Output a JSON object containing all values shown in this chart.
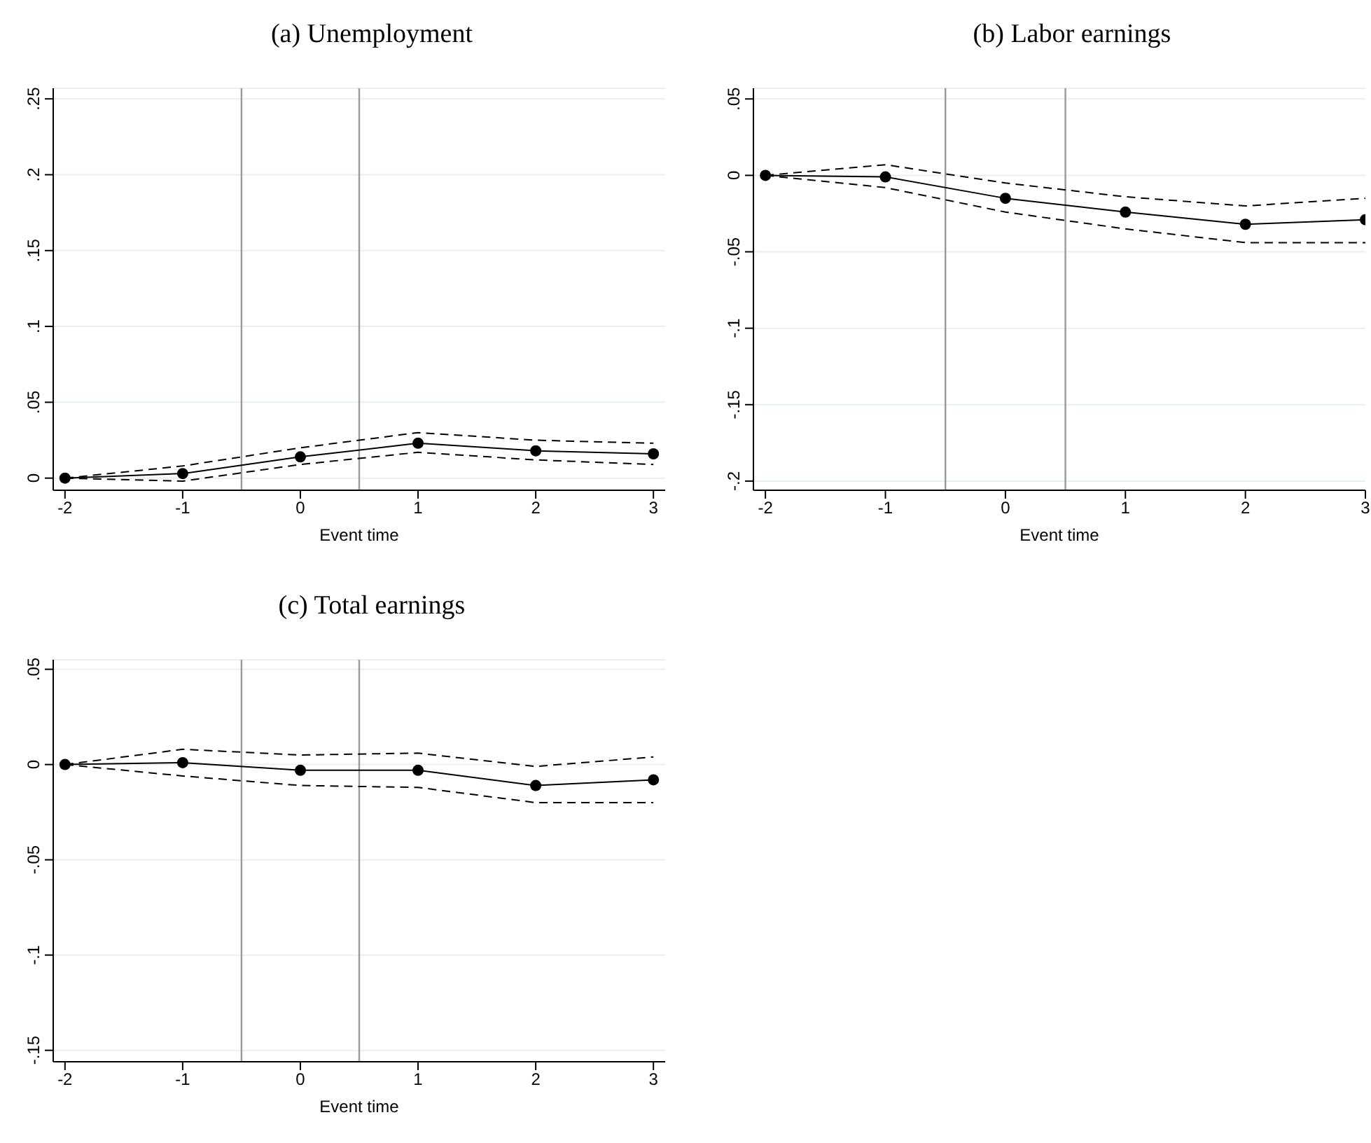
{
  "chart_data": [
    {
      "type": "line",
      "title": "(a) Unemployment",
      "xlabel": "Event time",
      "x": [
        -2,
        -1,
        0,
        1,
        2,
        3
      ],
      "series": [
        {
          "color": "#000000",
          "values": [
            0,
            0.003,
            0.014,
            0.023,
            0.018,
            0.016
          ],
          "marker": "circle",
          "line_style": "solid"
        },
        {
          "color": "#000000",
          "values": [
            0,
            -0.002,
            0.009,
            0.017,
            0.012,
            0.009
          ],
          "marker": "none",
          "line_style": "dashed"
        },
        {
          "color": "#000000",
          "values": [
            0,
            0.008,
            0.02,
            0.03,
            0.025,
            0.023
          ],
          "marker": "none",
          "line_style": "dashed"
        }
      ],
      "xlim": [
        -2.1,
        3.1
      ],
      "xticks": [
        -2,
        -1,
        0,
        1,
        2,
        3
      ],
      "ylim": [
        -0.008,
        0.257
      ],
      "yticks": [
        {
          "value": 0,
          "label": "0"
        },
        {
          "value": 0.05,
          "label": ".05"
        },
        {
          "value": 0.1,
          "label": ".1"
        },
        {
          "value": 0.15,
          "label": ".15"
        },
        {
          "value": 0.2,
          "label": ".2"
        },
        {
          "value": 0.25,
          "label": ".25"
        }
      ],
      "ref_lines": [
        {
          "axis": "x",
          "value": -0.5,
          "color": "#999999"
        },
        {
          "axis": "x",
          "value": 0.5,
          "color": "#999999"
        }
      ],
      "grid": "y"
    },
    {
      "type": "line",
      "title": "(b) Labor earnings",
      "xlabel": "Event time",
      "x": [
        -2,
        -1,
        0,
        1,
        2,
        3
      ],
      "series": [
        {
          "color": "#000000",
          "values": [
            0,
            -0.001,
            -0.015,
            -0.024,
            -0.032,
            -0.029
          ],
          "marker": "circle",
          "line_style": "solid"
        },
        {
          "color": "#000000",
          "values": [
            0,
            -0.008,
            -0.024,
            -0.035,
            -0.044,
            -0.044
          ],
          "marker": "none",
          "line_style": "dashed"
        },
        {
          "color": "#000000",
          "values": [
            0,
            0.007,
            -0.005,
            -0.014,
            -0.02,
            -0.015
          ],
          "marker": "none",
          "line_style": "dashed"
        }
      ],
      "xlim": [
        -2.1,
        3.0
      ],
      "xticks": [
        -2,
        -1,
        0,
        1,
        2,
        3
      ],
      "ylim": [
        -0.206,
        0.057
      ],
      "yticks": [
        {
          "value": -0.2,
          "label": "-.2"
        },
        {
          "value": -0.15,
          "label": "-.15"
        },
        {
          "value": -0.1,
          "label": "-.1"
        },
        {
          "value": -0.05,
          "label": "-.05"
        },
        {
          "value": 0,
          "label": "0"
        },
        {
          "value": 0.05,
          "label": ".05"
        }
      ],
      "ref_lines": [
        {
          "axis": "x",
          "value": -0.5,
          "color": "#999999"
        },
        {
          "axis": "x",
          "value": 0.5,
          "color": "#999999"
        }
      ],
      "grid": "y"
    },
    {
      "type": "line",
      "title": "(c) Total earnings",
      "xlabel": "Event time",
      "x": [
        -2,
        -1,
        0,
        1,
        2,
        3
      ],
      "series": [
        {
          "color": "#000000",
          "values": [
            0,
            0.001,
            -0.003,
            -0.003,
            -0.011,
            -0.008
          ],
          "marker": "circle",
          "line_style": "solid"
        },
        {
          "color": "#000000",
          "values": [
            0,
            -0.006,
            -0.011,
            -0.012,
            -0.02,
            -0.02
          ],
          "marker": "none",
          "line_style": "dashed"
        },
        {
          "color": "#000000",
          "values": [
            0,
            0.008,
            0.005,
            0.006,
            -0.001,
            0.004
          ],
          "marker": "none",
          "line_style": "dashed"
        }
      ],
      "xlim": [
        -2.1,
        3.1
      ],
      "xticks": [
        -2,
        -1,
        0,
        1,
        2,
        3
      ],
      "ylim": [
        -0.156,
        0.055
      ],
      "yticks": [
        {
          "value": -0.15,
          "label": "-.15"
        },
        {
          "value": -0.1,
          "label": "-.1"
        },
        {
          "value": -0.05,
          "label": "-.05"
        },
        {
          "value": 0,
          "label": "0"
        },
        {
          "value": 0.05,
          "label": ".05"
        }
      ],
      "ref_lines": [
        {
          "axis": "x",
          "value": -0.5,
          "color": "#999999"
        },
        {
          "axis": "x",
          "value": 0.5,
          "color": "#999999"
        }
      ],
      "grid": "y"
    }
  ]
}
